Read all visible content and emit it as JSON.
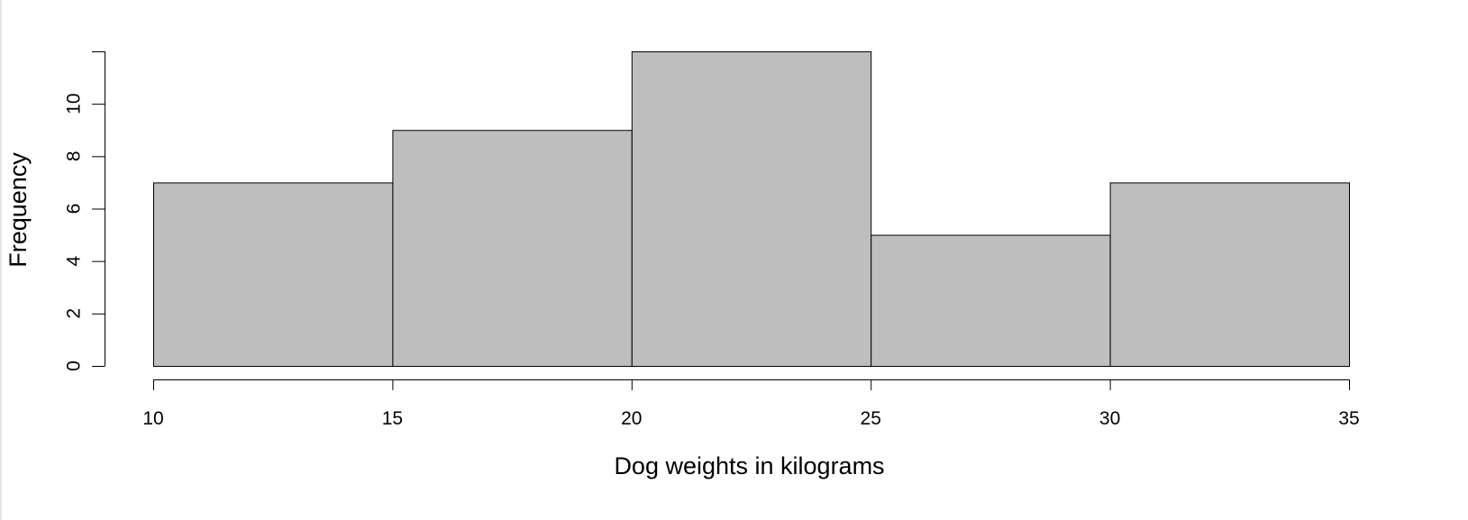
{
  "chart_data": {
    "type": "bar",
    "subtype": "histogram",
    "title": "",
    "xlabel": "Dog weights in kilograms",
    "ylabel": "Frequency",
    "bins": [
      {
        "from": 10,
        "to": 15,
        "count": 7
      },
      {
        "from": 15,
        "to": 20,
        "count": 9
      },
      {
        "from": 20,
        "to": 25,
        "count": 12
      },
      {
        "from": 25,
        "to": 30,
        "count": 5
      },
      {
        "from": 30,
        "to": 35,
        "count": 7
      }
    ],
    "xlim": [
      10,
      35
    ],
    "ylim": [
      0,
      12
    ],
    "x_ticks": [
      10,
      15,
      20,
      25,
      30,
      35
    ],
    "y_ticks": [
      0,
      2,
      4,
      6,
      8,
      10
    ],
    "grid": false,
    "legend": "none",
    "bar_color": "#bebebe",
    "border_color": "#000000"
  }
}
